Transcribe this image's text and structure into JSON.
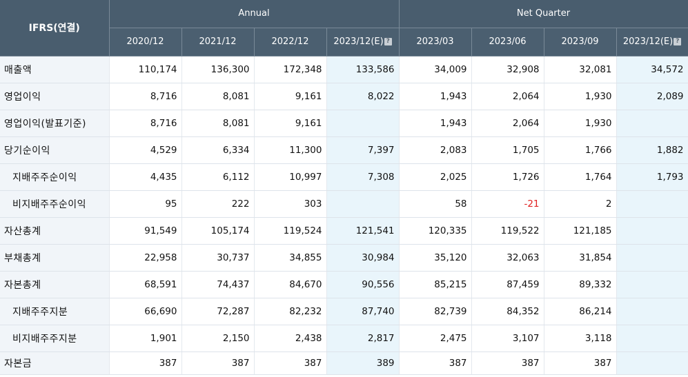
{
  "header": {
    "ifrs_label": "IFRS(연결)",
    "annual_label": "Annual",
    "quarter_label": "Net Quarter",
    "annual_periods": [
      "2020/12",
      "2021/12",
      "2022/12",
      "2023/12(E)"
    ],
    "quarter_periods": [
      "2023/03",
      "2023/06",
      "2023/09",
      "2023/12(E)"
    ],
    "info_icon": "?"
  },
  "colors": {
    "header_bg": "#495d6e",
    "estimate_bg": "#e9f5fb",
    "label_bg": "#f1f5f9",
    "negative": "#e02020"
  },
  "rows": [
    {
      "label": "매출액",
      "values": [
        "110,174",
        "136,300",
        "172,348",
        "133,586",
        "34,009",
        "32,908",
        "32,081",
        "34,572"
      ]
    },
    {
      "label": "영업이익",
      "values": [
        "8,716",
        "8,081",
        "9,161",
        "8,022",
        "1,943",
        "2,064",
        "1,930",
        "2,089"
      ]
    },
    {
      "label": "영업이익(발표기준)",
      "values": [
        "8,716",
        "8,081",
        "9,161",
        "",
        "1,943",
        "2,064",
        "1,930",
        ""
      ]
    },
    {
      "label": "당기순이익",
      "values": [
        "4,529",
        "6,334",
        "11,300",
        "7,397",
        "2,083",
        "1,705",
        "1,766",
        "1,882"
      ]
    },
    {
      "label": "지배주주순이익",
      "values": [
        "4,435",
        "6,112",
        "10,997",
        "7,308",
        "2,025",
        "1,726",
        "1,764",
        "1,793"
      ]
    },
    {
      "label": "비지배주주순이익",
      "values": [
        "95",
        "222",
        "303",
        "",
        "58",
        "-21",
        "2",
        ""
      ]
    },
    {
      "label": "자산총계",
      "values": [
        "91,549",
        "105,174",
        "119,524",
        "121,541",
        "120,335",
        "119,522",
        "121,185",
        ""
      ]
    },
    {
      "label": "부채총계",
      "values": [
        "22,958",
        "30,737",
        "34,855",
        "30,984",
        "35,120",
        "32,063",
        "31,854",
        ""
      ]
    },
    {
      "label": "자본총계",
      "values": [
        "68,591",
        "74,437",
        "84,670",
        "90,556",
        "85,215",
        "87,459",
        "89,332",
        ""
      ]
    },
    {
      "label": "지배주주지분",
      "values": [
        "66,690",
        "72,287",
        "82,232",
        "87,740",
        "82,739",
        "84,352",
        "86,214",
        ""
      ]
    },
    {
      "label": "비지배주주지분",
      "values": [
        "1,901",
        "2,150",
        "2,438",
        "2,817",
        "2,475",
        "3,107",
        "3,118",
        ""
      ]
    },
    {
      "label": "자본금",
      "values": [
        "387",
        "387",
        "387",
        "389",
        "387",
        "387",
        "387",
        ""
      ]
    }
  ]
}
